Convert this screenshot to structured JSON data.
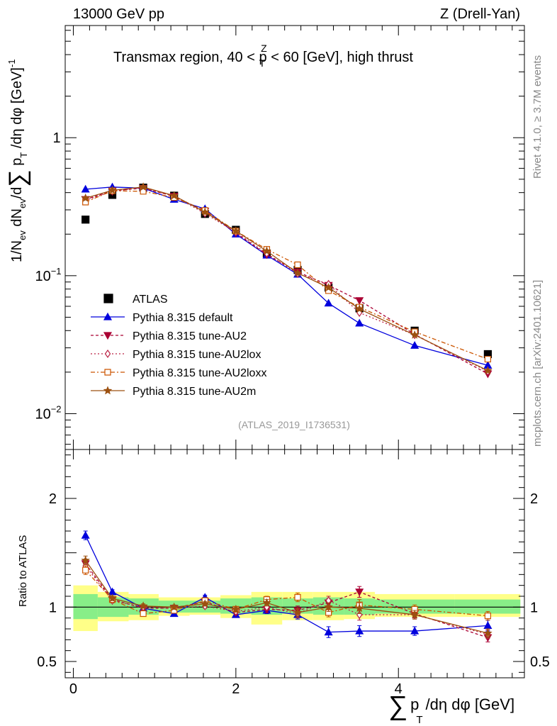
{
  "header": {
    "left": "13000 GeV pp",
    "right": "Z (Drell-Yan)"
  },
  "side_labels": {
    "rivet": "Rivet 4.1.0, ≥ 3.7M events",
    "mcplots": "mcplots.cern.ch [arXiv:2401.10621]"
  },
  "chart_data": {
    "type": "line",
    "title": "Transmax region, 40 < p_T^Z < 60 [GeV], high thrust",
    "title_parts": {
      "a": "Transmax region, 40 < p",
      "sup": "Z",
      "sub": "T",
      "b": " < 60 [GeV], high thrust"
    },
    "analysis_id": "(ATLAS_2019_I1736531)",
    "xlabel": "∑ p_T /dη dφ [GeV]",
    "xlabel_parts": {
      "sum": "∑",
      "p": "p",
      "sub": "T",
      "rest": "/dη dφ [GeV]"
    },
    "ylabel": "1/N_ev dN_ev/d∑ p_T /dη dφ [GeV]^-1",
    "ylabel_parts": {
      "a": "1/N",
      "ev1": "ev",
      "b": " dN",
      "ev2": "ev",
      "c": "/d",
      "sum": "∑",
      "d": " p",
      "T": "T",
      "e": " /dη dφ  [GeV]",
      "sup": "-1"
    },
    "ratio_ylabel": "Ratio to ATLAS",
    "xlim": [
      -0.1,
      5.55
    ],
    "ylim": [
      0.0055,
      6.5
    ],
    "ratio_ylim": [
      0.35,
      2.45
    ],
    "yscale": "log",
    "x_ticks": [
      "0",
      "2",
      "4"
    ],
    "x_tick_values": [
      0,
      2,
      4
    ],
    "y_tick_labels": [
      {
        "value": 1,
        "base": "1",
        "exp": ""
      },
      {
        "value": 0.1,
        "base": "10",
        "exp": "−1"
      },
      {
        "value": 0.01,
        "base": "10",
        "exp": "−2"
      }
    ],
    "ratio_ticks": [
      "0.5",
      "1",
      "2"
    ],
    "ratio_tick_values": [
      0.5,
      1,
      2
    ],
    "x": [
      0.15,
      0.48,
      0.86,
      1.24,
      1.62,
      2.0,
      2.38,
      2.76,
      3.14,
      3.52,
      4.2,
      5.1
    ],
    "data": {
      "name": "ATLAS",
      "values": [
        0.255,
        0.385,
        0.435,
        0.38,
        0.28,
        0.215,
        0.145,
        0.11,
        0.082,
        0.058,
        0.04,
        0.027
      ]
    },
    "band_edges": [
      0.0,
      0.3,
      0.68,
      1.05,
      1.43,
      1.81,
      2.19,
      2.57,
      2.95,
      3.33,
      3.71,
      4.69,
      5.5
    ],
    "band_inner": [
      [
        0.89,
        1.12
      ],
      [
        0.91,
        1.09
      ],
      [
        0.93,
        1.08
      ],
      [
        0.95,
        1.06
      ],
      [
        0.95,
        1.06
      ],
      [
        0.94,
        1.08
      ],
      [
        0.93,
        1.09
      ],
      [
        0.94,
        1.08
      ],
      [
        0.93,
        1.09
      ],
      [
        0.93,
        1.08
      ],
      [
        0.94,
        1.07
      ],
      [
        0.94,
        1.07
      ]
    ],
    "band_outer": [
      [
        0.78,
        1.2
      ],
      [
        0.87,
        1.14
      ],
      [
        0.88,
        1.12
      ],
      [
        0.92,
        1.09
      ],
      [
        0.93,
        1.09
      ],
      [
        0.9,
        1.11
      ],
      [
        0.84,
        1.14
      ],
      [
        0.88,
        1.14
      ],
      [
        0.88,
        1.14
      ],
      [
        0.89,
        1.14
      ],
      [
        0.91,
        1.12
      ],
      [
        0.91,
        1.12
      ]
    ],
    "series": [
      {
        "name": "Pythia 8.315 default",
        "color": "#0000dd",
        "dash": "",
        "marker": "triangle-up",
        "filled": true,
        "ratio": [
          1.66,
          1.14,
          0.99,
          0.94,
          1.09,
          0.93,
          0.97,
          0.93,
          0.77,
          0.78,
          0.78,
          0.83
        ],
        "ratio_err": [
          0.04,
          0.02,
          0.02,
          0.02,
          0.02,
          0.02,
          0.03,
          0.04,
          0.05,
          0.05,
          0.04,
          0.05
        ]
      },
      {
        "name": "Pythia 8.315 tune-AU2",
        "color": "#aa0033",
        "dash": "4,3",
        "marker": "triangle-down",
        "filled": true,
        "ratio": [
          1.4,
          1.07,
          0.99,
          0.99,
          1.05,
          0.95,
          0.98,
          0.97,
          1.04,
          1.14,
          0.94,
          0.72
        ],
        "ratio_err": [
          0.04,
          0.02,
          0.02,
          0.02,
          0.02,
          0.02,
          0.03,
          0.04,
          0.04,
          0.05,
          0.04,
          0.04
        ]
      },
      {
        "name": "Pythia 8.315 tune-AU2lox",
        "color": "#bb2244",
        "dash": "2,3",
        "marker": "diamond",
        "filled": false,
        "ratio": [
          1.38,
          1.06,
          1.0,
          0.99,
          1.01,
          0.96,
          1.0,
          0.94,
          1.06,
          0.93,
          0.93,
          0.75
        ],
        "ratio_err": [
          0.04,
          0.02,
          0.02,
          0.02,
          0.02,
          0.02,
          0.03,
          0.04,
          0.04,
          0.05,
          0.04,
          0.04
        ]
      },
      {
        "name": "Pythia 8.315 tune-AU2loxx",
        "color": "#cc5500",
        "dash": "6,3,2,3",
        "marker": "square",
        "filled": false,
        "ratio": [
          1.34,
          1.07,
          0.94,
          0.97,
          1.06,
          0.98,
          1.07,
          1.09,
          0.95,
          1.02,
          0.98,
          0.92
        ],
        "ratio_err": [
          0.04,
          0.02,
          0.02,
          0.02,
          0.02,
          0.02,
          0.03,
          0.04,
          0.04,
          0.05,
          0.04,
          0.04
        ]
      },
      {
        "name": "Pythia 8.315 tune-AU2m",
        "color": "#9c5010",
        "dash": "",
        "marker": "star",
        "filled": true,
        "ratio": [
          1.43,
          1.08,
          1.01,
          1.0,
          1.03,
          0.98,
          1.04,
          0.95,
          1.0,
          0.99,
          0.93,
          0.76
        ],
        "ratio_err": [
          0.04,
          0.02,
          0.02,
          0.02,
          0.02,
          0.02,
          0.03,
          0.04,
          0.04,
          0.05,
          0.04,
          0.04
        ]
      }
    ],
    "legend_position": "lower-left"
  }
}
